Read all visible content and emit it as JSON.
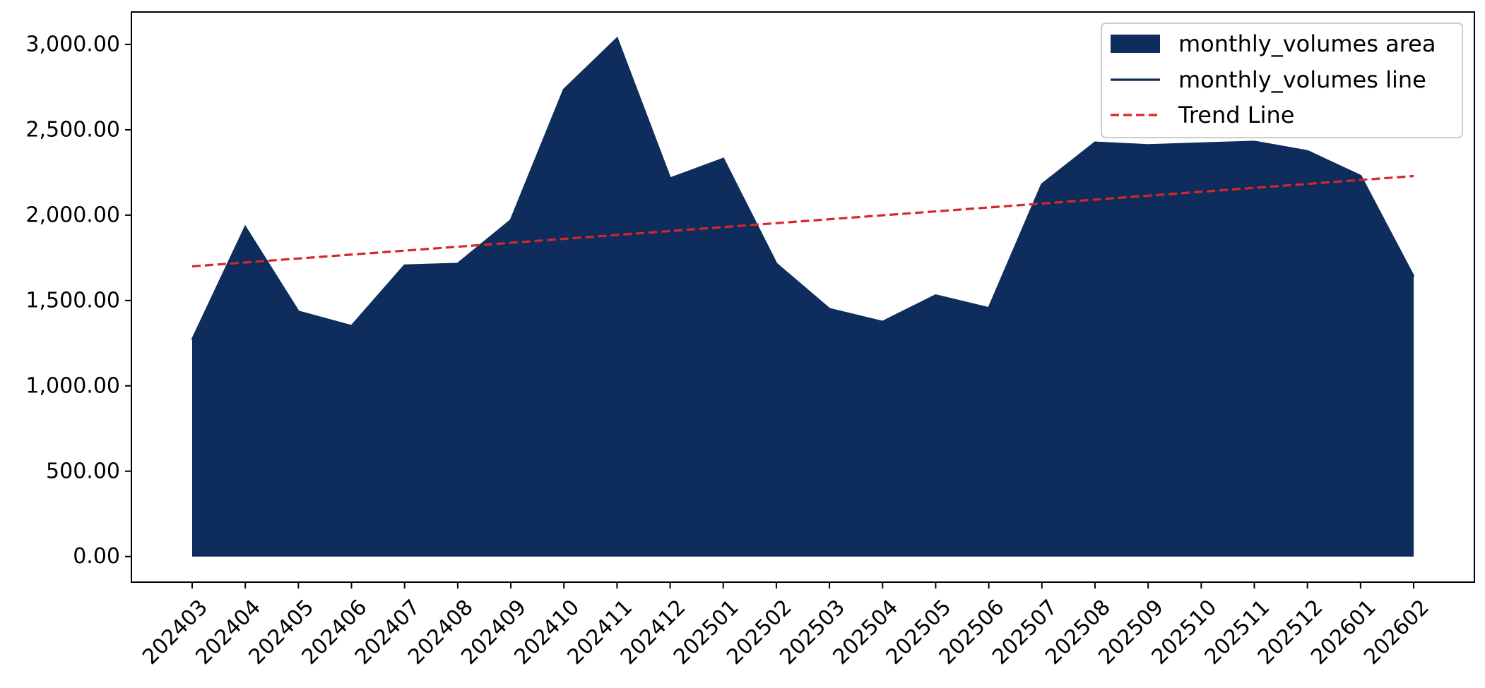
{
  "chart_data": {
    "type": "area",
    "title": "",
    "xlabel": "",
    "ylabel": "",
    "categories": [
      "202403",
      "202404",
      "202405",
      "202406",
      "202407",
      "202408",
      "202409",
      "202410",
      "202411",
      "202412",
      "202501",
      "202502",
      "202503",
      "202504",
      "202505",
      "202506",
      "202507",
      "202508",
      "202509",
      "202510",
      "202511",
      "202512",
      "202601",
      "202602"
    ],
    "series": [
      {
        "name": "monthly_volumes area",
        "kind": "area",
        "color": "#0e2d5c",
        "values": [
          1270,
          1930,
          1435,
          1350,
          1705,
          1715,
          1970,
          2735,
          3035,
          2215,
          2330,
          1715,
          1450,
          1375,
          1530,
          1455,
          2180,
          2425,
          2410,
          2420,
          2430,
          2375,
          2230,
          1640
        ]
      },
      {
        "name": "monthly_volumes line",
        "kind": "line",
        "color": "#0e2d5c",
        "values": [
          1270,
          1930,
          1435,
          1350,
          1705,
          1715,
          1970,
          2735,
          3035,
          2215,
          2330,
          1715,
          1450,
          1375,
          1530,
          1455,
          2180,
          2425,
          2410,
          2420,
          2430,
          2375,
          2230,
          1640
        ]
      },
      {
        "name": "Trend Line",
        "kind": "line",
        "style": "dashed",
        "color": "#d62728",
        "values": [
          1700,
          1723,
          1746,
          1769,
          1792,
          1815,
          1838,
          1861,
          1884,
          1907,
          1930,
          1953,
          1976,
          1999,
          2022,
          2045,
          2068,
          2091,
          2114,
          2137,
          2160,
          2183,
          2206,
          2229
        ]
      }
    ],
    "yticks": [
      "0.00",
      "500.00",
      "1,000.00",
      "1,500.00",
      "2,000.00",
      "2,500.00",
      "3,000.00"
    ],
    "ytick_values": [
      0,
      500,
      1000,
      1500,
      2000,
      2500,
      3000
    ],
    "ylim": [
      -150,
      3190
    ],
    "grid": false,
    "legend_position": "top-right"
  }
}
